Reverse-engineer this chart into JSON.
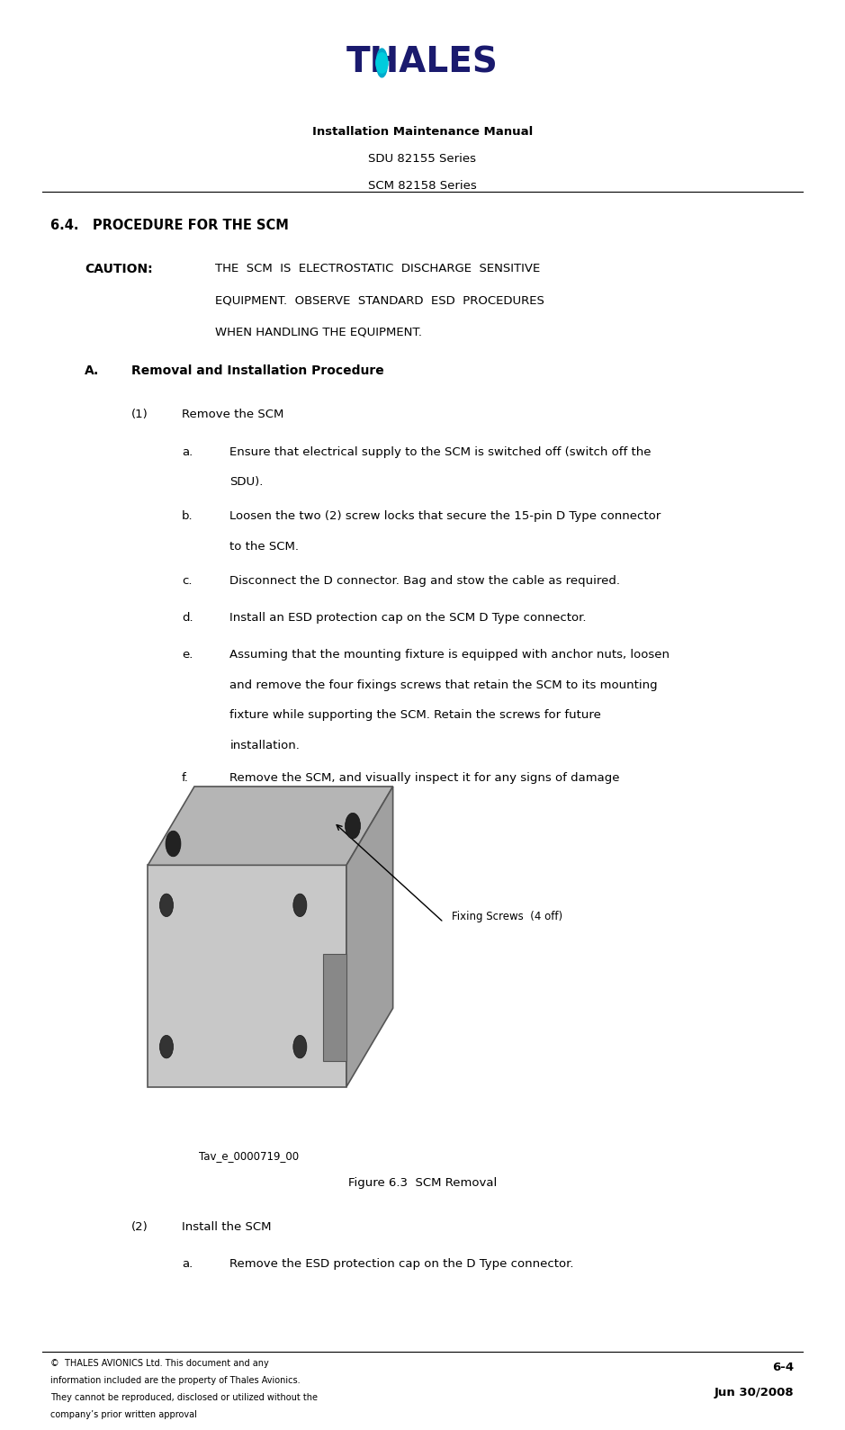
{
  "page_width": 9.39,
  "page_height": 15.89,
  "bg_color": "#ffffff",
  "thales_color": "#1a1a6e",
  "header_line1": "Installation Maintenance Manual",
  "header_line2": "SDU 82155 Series",
  "header_line3": "SCM 82158 Series",
  "caution_label": "CAUTION:",
  "caution_text_line1": "THE  SCM  IS  ELECTROSTATIC  DISCHARGE  SENSITIVE",
  "caution_text_line2": "EQUIPMENT.  OBSERVE  STANDARD  ESD  PROCEDURES",
  "caution_text_line3": "WHEN HANDLING THE EQUIPMENT.",
  "item_a_text1": "Ensure that electrical supply to the SCM is switched off (switch off the",
  "item_a_text2": "SDU).",
  "item_b_text1": "Loosen the two (2) screw locks that secure the 15-pin D Type connector",
  "item_b_text2": "to the SCM.",
  "item_c_text": "Disconnect the D connector. Bag and stow the cable as required.",
  "item_d_text": "Install an ESD protection cap on the SCM D Type connector.",
  "item_e_text1": "Assuming that the mounting fixture is equipped with anchor nuts, loosen",
  "item_e_text2": "and remove the four fixings screws that retain the SCM to its mounting",
  "item_e_text3": "fixture while supporting the SCM. Retain the screws for future",
  "item_e_text4": "installation.",
  "item_f_text": "Remove the SCM, and visually inspect it for any signs of damage",
  "figure_label": "Tav_e_0000719_00",
  "figure_caption": "Figure 6.3  SCM Removal",
  "fixing_screws_label": "Fixing Screws  (4 off)",
  "item2a_text": "Remove the ESD protection cap on the D Type connector.",
  "footer_left1": "©  THALES AVIONICS Ltd. This document and any",
  "footer_left2": "information included are the property of Thales Avionics.",
  "footer_left3": "They cannot be reproduced, disclosed or utilized without the",
  "footer_left4": "company’s prior written approval",
  "footer_right1": "6-4",
  "footer_right2": "Jun 30/2008"
}
